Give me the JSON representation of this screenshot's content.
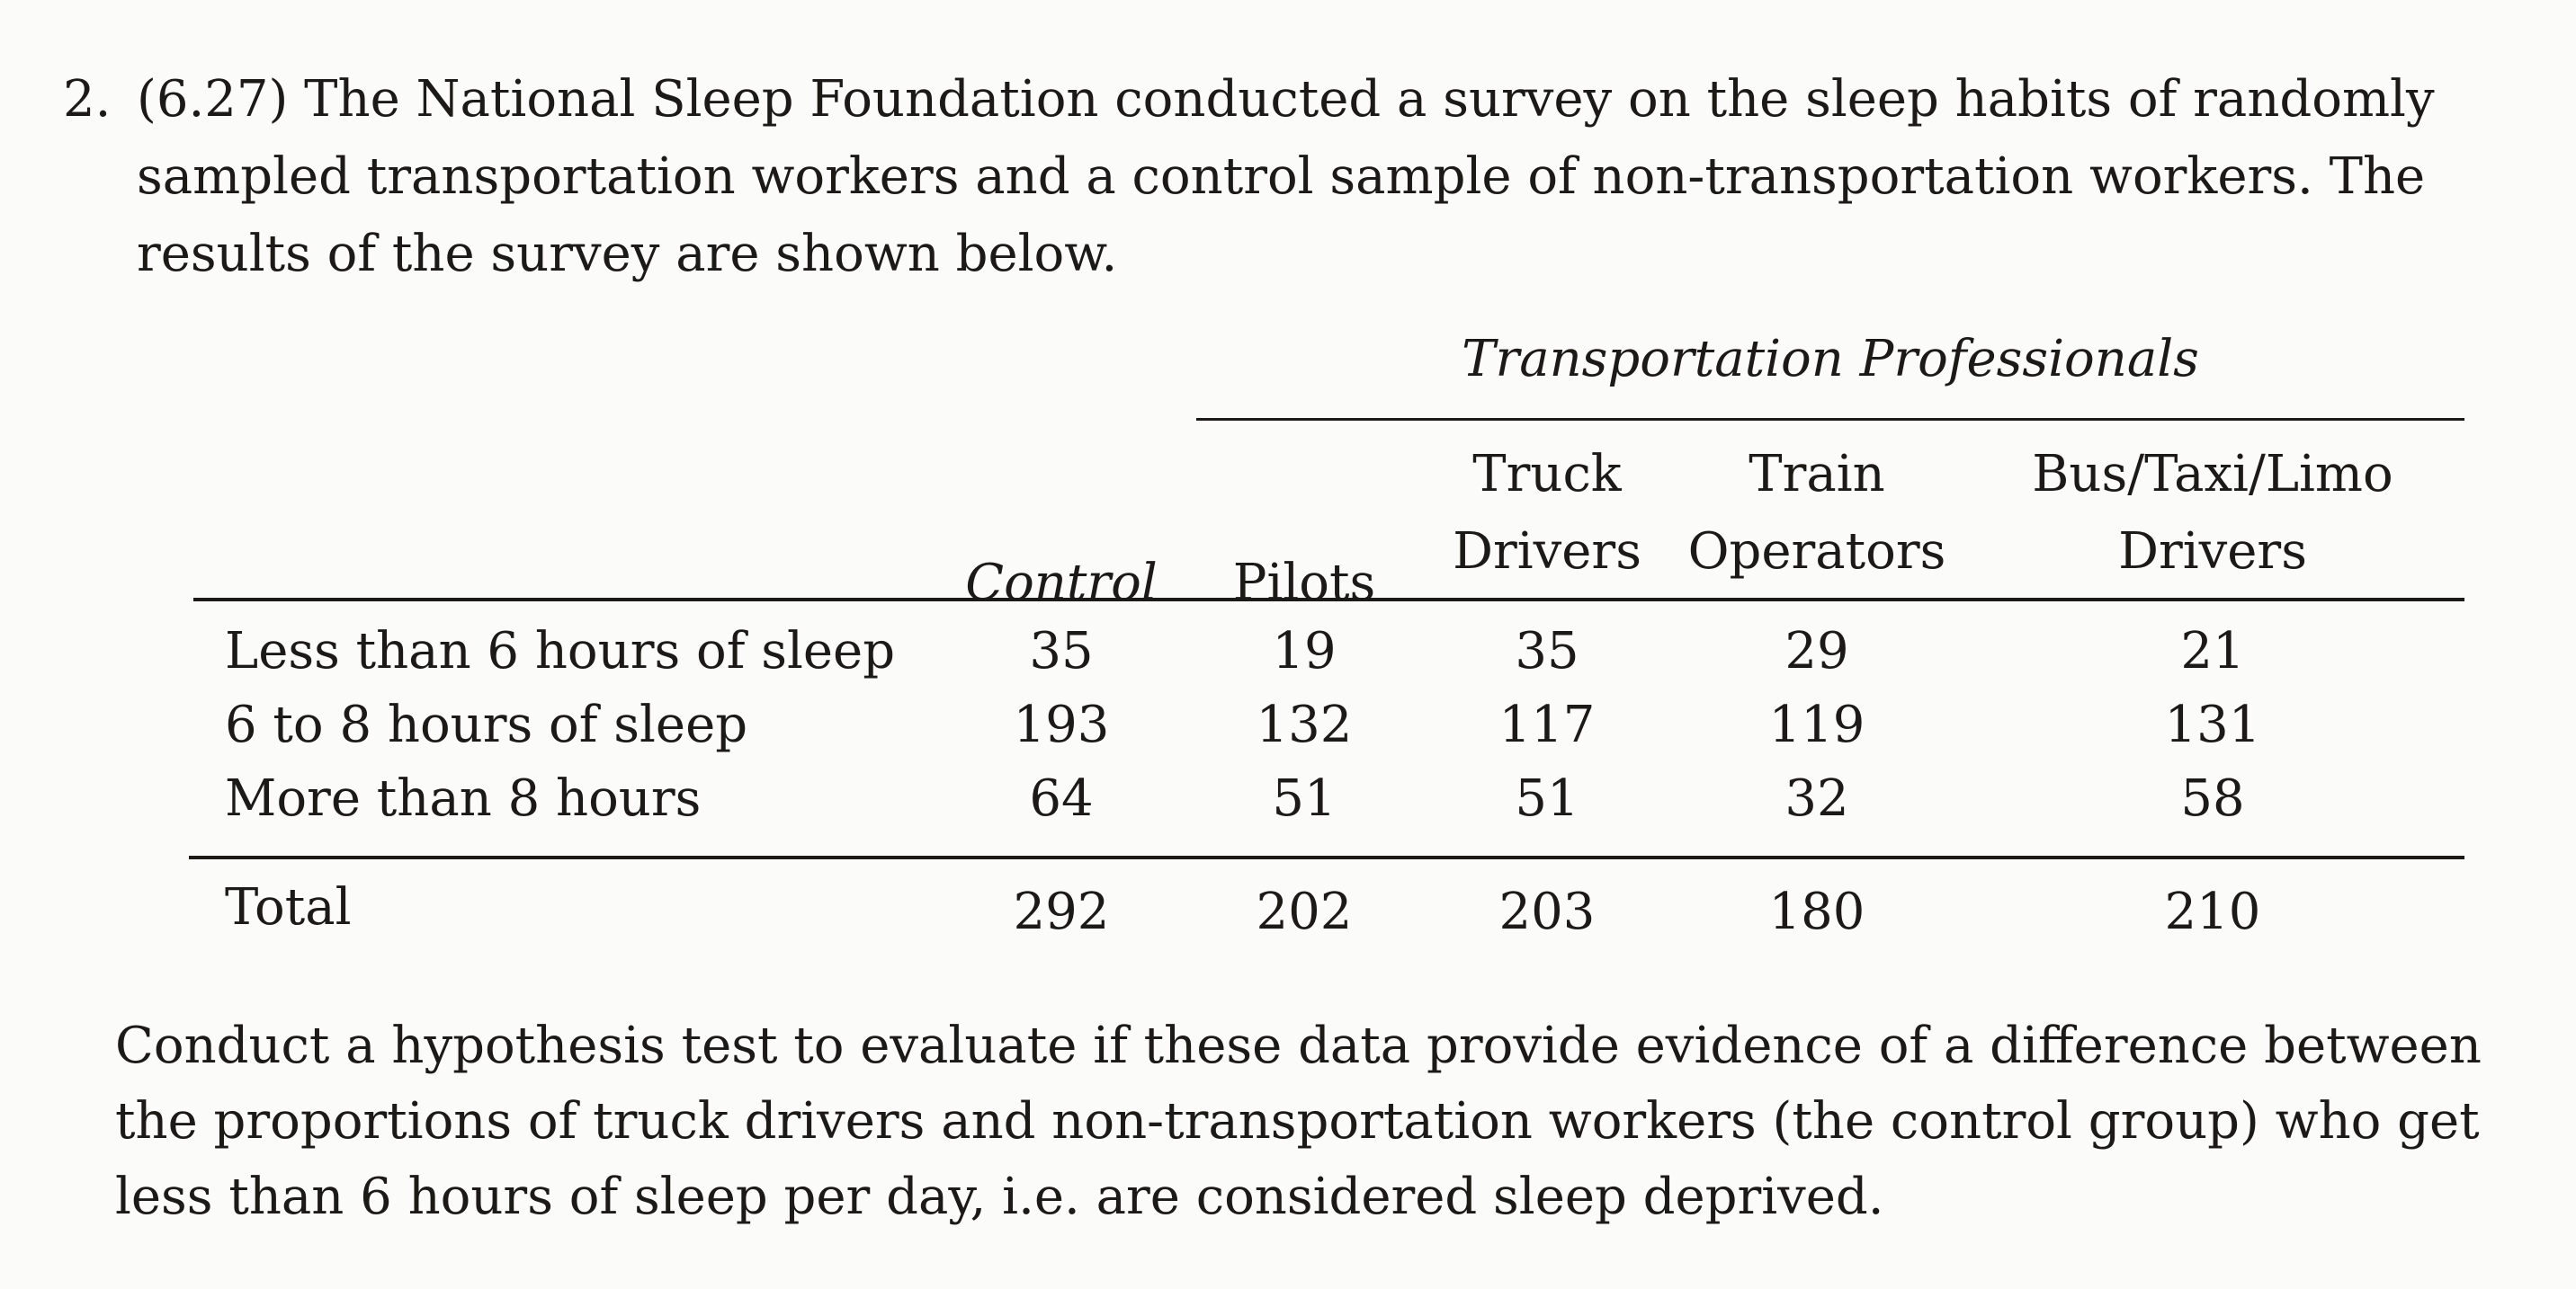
{
  "problem": {
    "number": "2.",
    "intro_lines": [
      "(6.27) The National Sleep Foundation conducted a survey on the sleep habits of randomly",
      "sampled transportation workers and a control sample of non-transportation workers.  The",
      "results of the survey are shown below."
    ]
  },
  "table": {
    "group_header": "Transportation Professionals",
    "columns": [
      {
        "line1": "",
        "line2": "Control"
      },
      {
        "line1": "",
        "line2": "Pilots"
      },
      {
        "line1": "Truck",
        "line2": "Drivers"
      },
      {
        "line1": "Train",
        "line2": "Operators"
      },
      {
        "line1": "Bus/Taxi/Limo",
        "line2": "Drivers"
      }
    ],
    "rows": [
      {
        "label": "Less than 6 hours of sleep",
        "values": [
          "35",
          "19",
          "35",
          "29",
          "21"
        ]
      },
      {
        "label": "6 to 8 hours of sleep",
        "values": [
          "193",
          "132",
          "117",
          "119",
          "131"
        ]
      },
      {
        "label": "More than 8 hours",
        "values": [
          "64",
          "51",
          "51",
          "32",
          "58"
        ]
      }
    ],
    "total": {
      "label": "Total",
      "values": [
        "292",
        "202",
        "203",
        "180",
        "210"
      ]
    }
  },
  "question_lines": [
    "Conduct a hypothesis test to evaluate if these data provide evidence of a difference between",
    "the proportions of truck drivers and non-transportation workers (the control group) who get",
    "less than 6 hours of sleep per day, i.e. are considered sleep deprived."
  ]
}
